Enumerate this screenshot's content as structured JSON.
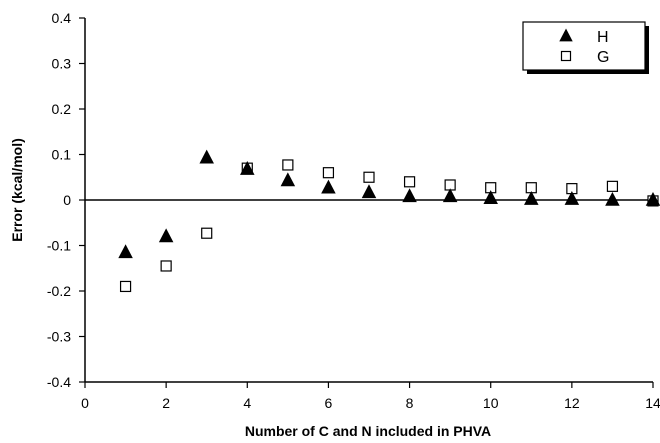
{
  "chart_data": {
    "type": "scatter",
    "title": "",
    "xlabel": "Number of C and N included in PHVA",
    "ylabel": "Error (kcal/mol)",
    "xlim": [
      0,
      14
    ],
    "ylim": [
      -0.4,
      0.4
    ],
    "x_ticks": [
      0,
      2,
      4,
      6,
      8,
      10,
      12,
      14
    ],
    "x_tick_labels": [
      "0",
      "2",
      "4",
      "6",
      "8",
      "10",
      "12",
      "14"
    ],
    "y_ticks": [
      -0.4,
      -0.3,
      -0.2,
      -0.1,
      0,
      0.1,
      0.2,
      0.3,
      0.4
    ],
    "y_tick_labels": [
      "-0.4",
      "-0.3",
      "-0.2",
      "-0.1",
      "0",
      "0.1",
      "0.2",
      "0.3",
      "0.4"
    ],
    "grid": false,
    "zero_line": true,
    "legend_position": "top-right",
    "series": [
      {
        "name": "H",
        "marker": "filled-triangle",
        "color": "#000000",
        "x": [
          1,
          2,
          3,
          4,
          5,
          6,
          7,
          8,
          9,
          10,
          11,
          12,
          13,
          14
        ],
        "y": [
          -0.115,
          -0.08,
          0.093,
          0.068,
          0.043,
          0.027,
          0.017,
          0.008,
          0.008,
          0.004,
          0.002,
          0.002,
          0.0,
          0.0
        ]
      },
      {
        "name": "G",
        "marker": "open-square",
        "color": "#000000",
        "x": [
          1,
          2,
          3,
          4,
          5,
          6,
          7,
          8,
          9,
          10,
          11,
          12,
          13,
          14
        ],
        "y": [
          -0.19,
          -0.145,
          -0.073,
          0.07,
          0.077,
          0.06,
          0.05,
          0.04,
          0.033,
          0.027,
          0.027,
          0.025,
          0.03,
          -0.002
        ]
      }
    ]
  }
}
